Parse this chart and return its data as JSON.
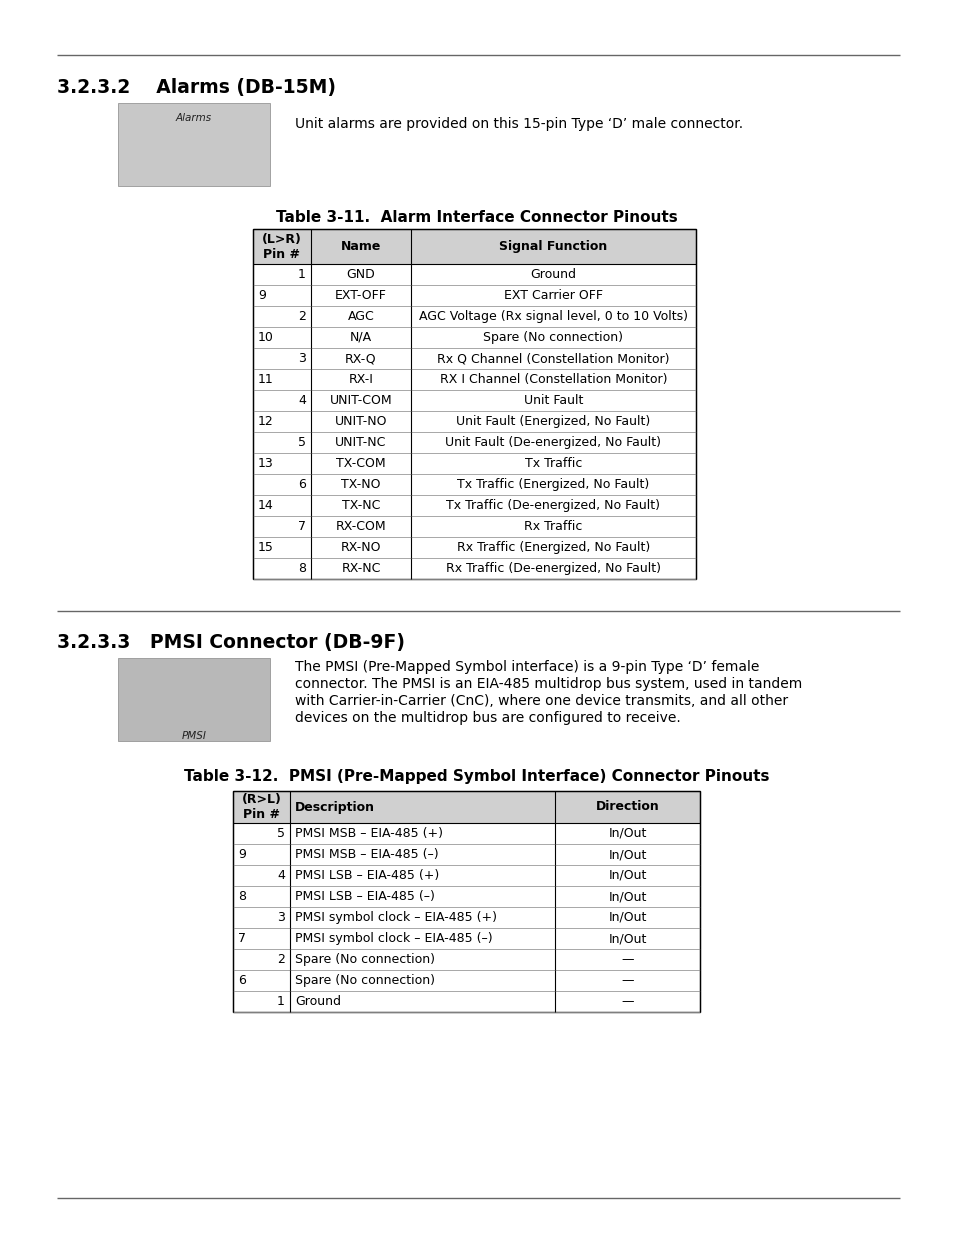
{
  "page_bg": "#ffffff",
  "section1_title": "3.2.3.2    Alarms (DB-15M)",
  "section1_desc": "Unit alarms are provided on this 15-pin Type ‘D’ male connector.",
  "table1_title": "Table 3-11.  Alarm Interface Connector Pinouts",
  "table1_rows": [
    [
      "1",
      "GND",
      "Ground",
      "right"
    ],
    [
      "9",
      "EXT-OFF",
      "EXT Carrier OFF",
      "left"
    ],
    [
      "2",
      "AGC",
      "AGC Voltage (Rx signal level, 0 to 10 Volts)",
      "right"
    ],
    [
      "10",
      "N/A",
      "Spare (No connection)",
      "left"
    ],
    [
      "3",
      "RX-Q",
      "Rx Q Channel (Constellation Monitor)",
      "right"
    ],
    [
      "11",
      "RX-I",
      "RX I Channel (Constellation Monitor)",
      "left"
    ],
    [
      "4",
      "UNIT-COM",
      "Unit Fault",
      "right"
    ],
    [
      "12",
      "UNIT-NO",
      "Unit Fault (Energized, No Fault)",
      "left"
    ],
    [
      "5",
      "UNIT-NC",
      "Unit Fault (De-energized, No Fault)",
      "right"
    ],
    [
      "13",
      "TX-COM",
      "Tx Traffic",
      "left"
    ],
    [
      "6",
      "TX-NO",
      "Tx Traffic (Energized, No Fault)",
      "right"
    ],
    [
      "14",
      "TX-NC",
      "Tx Traffic (De-energized, No Fault)",
      "left"
    ],
    [
      "7",
      "RX-COM",
      "Rx Traffic",
      "right"
    ],
    [
      "15",
      "RX-NO",
      "Rx Traffic (Energized, No Fault)",
      "left"
    ],
    [
      "8",
      "RX-NC",
      "Rx Traffic (De-energized, No Fault)",
      "right"
    ]
  ],
  "section2_title": "3.2.3.3   PMSI Connector (DB-9F)",
  "table2_title": "Table 3-12.  PMSI (Pre-Mapped Symbol Interface) Connector Pinouts",
  "table2_rows": [
    [
      "5",
      "PMSI MSB – EIA-485 (+)",
      "In/Out",
      "right"
    ],
    [
      "9",
      "PMSI MSB – EIA-485 (–)",
      "In/Out",
      "left"
    ],
    [
      "4",
      "PMSI LSB – EIA-485 (+)",
      "In/Out",
      "right"
    ],
    [
      "8",
      "PMSI LSB – EIA-485 (–)",
      "In/Out",
      "left"
    ],
    [
      "3",
      "PMSI symbol clock – EIA-485 (+)",
      "In/Out",
      "right"
    ],
    [
      "7",
      "PMSI symbol clock – EIA-485 (–)",
      "In/Out",
      "left"
    ],
    [
      "2",
      "Spare (No connection)",
      "—",
      "right"
    ],
    [
      "6",
      "Spare (No connection)",
      "—",
      "left"
    ],
    [
      "1",
      "Ground",
      "—",
      "right"
    ]
  ],
  "header_bg": "#d0d0d0",
  "rule_color": "#666666",
  "border_color": "#000000",
  "row_line_color": "#999999",
  "img1_label": "Alarms",
  "img2_label": "PMSI",
  "desc1": "Unit alarms are provided on this 15-pin Type ‘D’ male connector.",
  "desc2_line1": "The PMSI (",
  "desc2_bold1": "Pre-",
  "desc2_text2": "M",
  "desc2_text3": "apped ",
  "desc2_bold2": "S",
  "desc2_text4": "ymbol ",
  "desc2_bold3": "interface",
  "desc2_line2": ") is a 9-pin Type ‘D’ female",
  "desc2_line3": "connector. The PMSI is an EIA-485 multidrop bus system, used in tandem",
  "desc2_line4": "with Carrier-in-Carrier (CnC), where one device transmits, and all other",
  "desc2_line5": "devices on the multidrop bus are configured to receive."
}
